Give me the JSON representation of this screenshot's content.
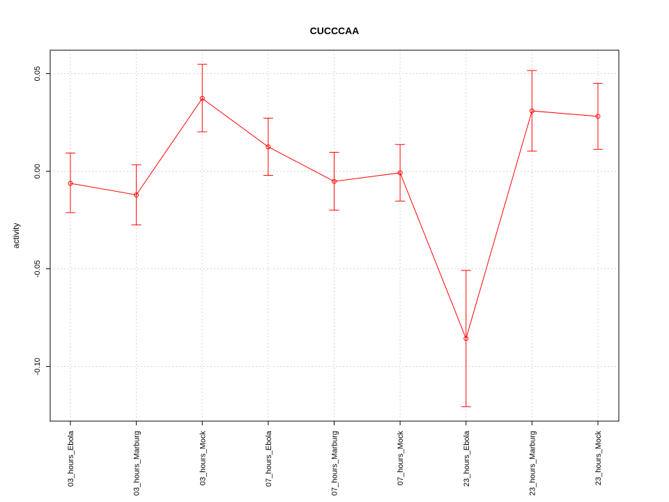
{
  "chart_data": {
    "type": "line",
    "title": "CUCCCAA",
    "xlabel": "",
    "ylabel": "activity",
    "categories": [
      "03_hours_Ebola",
      "03_hours_Marburg",
      "03_hours_Mock",
      "07_hours_Ebola",
      "07_hours_Marburg",
      "07_hours_Mock",
      "23_hours_Ebola",
      "23_hours_Marburg",
      "23_hours_Mock"
    ],
    "series": [
      {
        "values": [
          -0.0062,
          -0.0121,
          0.0373,
          0.0125,
          -0.0052,
          -0.0008,
          -0.0857,
          0.0309,
          0.0281
        ],
        "upper": [
          0.0093,
          0.0033,
          0.0548,
          0.0272,
          0.0097,
          0.0137,
          -0.0508,
          0.0516,
          0.045
        ],
        "lower": [
          -0.0212,
          -0.0275,
          0.0202,
          -0.0021,
          -0.0199,
          -0.0153,
          -0.1206,
          0.0103,
          0.0112
        ]
      }
    ],
    "ylim": [
      -0.128,
      0.062
    ],
    "yticks": [
      -0.1,
      -0.05,
      0.0,
      0.05
    ],
    "ytick_labels": [
      "-0.10",
      "-0.05",
      "0.00",
      "0.05"
    ],
    "grid": true,
    "colors": {
      "line": "#ff0000",
      "grid": "#d3d3d3",
      "axis": "#000000"
    }
  }
}
